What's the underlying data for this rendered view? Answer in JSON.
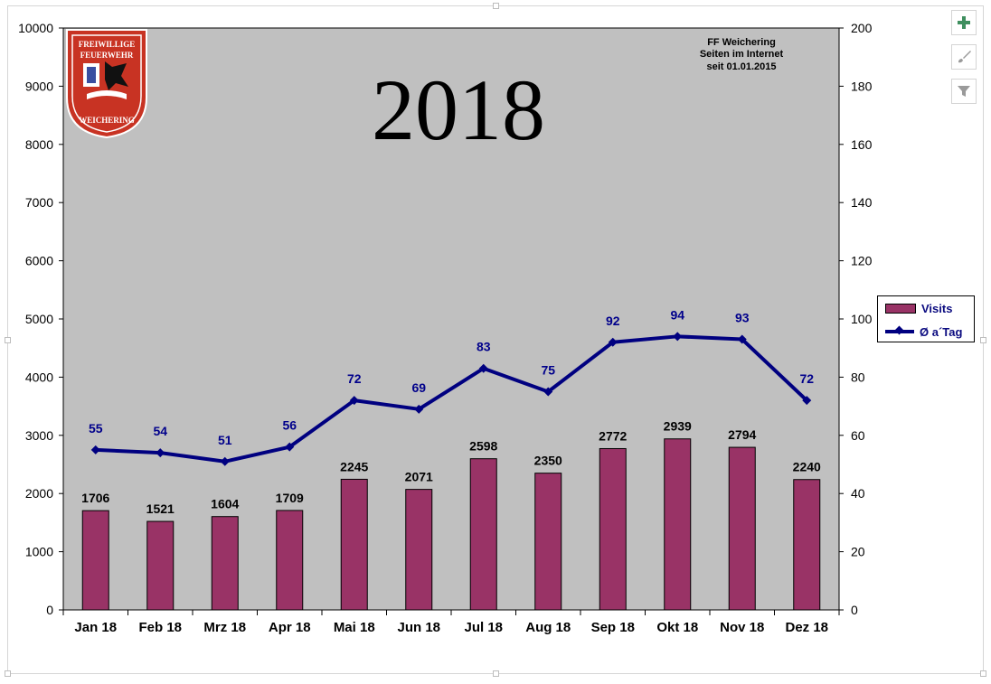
{
  "chart_data": {
    "type": "bar+line",
    "title": "2018",
    "subtitle": [
      "FF Weichering",
      "Seiten im Internet",
      "seit 01.01.2015"
    ],
    "categories": [
      "Jan 18",
      "Feb 18",
      "Mrz 18",
      "Apr 18",
      "Mai 18",
      "Jun 18",
      "Jul 18",
      "Aug 18",
      "Sep 18",
      "Okt 18",
      "Nov 18",
      "Dez 18"
    ],
    "series": [
      {
        "name": "Visits",
        "type": "bar",
        "axis": "left",
        "values": [
          1706,
          1521,
          1604,
          1709,
          2245,
          2071,
          2598,
          2350,
          2772,
          2939,
          2794,
          2240
        ]
      },
      {
        "name": "Ø a´Tag",
        "type": "line",
        "axis": "right",
        "values": [
          55,
          54,
          51,
          56,
          72,
          69,
          83,
          75,
          92,
          94,
          93,
          72
        ]
      }
    ],
    "y_left": {
      "min": 0,
      "max": 10000,
      "ticks": [
        0,
        1000,
        2000,
        3000,
        4000,
        5000,
        6000,
        7000,
        8000,
        9000,
        10000
      ]
    },
    "y_right": {
      "min": 0,
      "max": 200,
      "ticks": [
        0,
        20,
        40,
        60,
        80,
        100,
        120,
        140,
        160,
        180,
        200
      ]
    },
    "grid": false,
    "legend": "right",
    "plot_bg": "#c0c0c0",
    "bar_color": "#993366",
    "line_color": "#000080",
    "label_color": "#00008b"
  },
  "logo": {
    "text_top": [
      "FREIWILLIGE",
      "FEUERWEHR"
    ],
    "text_bottom": "WEICHERING",
    "color": "#c83323"
  },
  "legend": {
    "visits": "Visits",
    "avg": "Ø a´Tag"
  },
  "side_buttons": [
    "add-chart-element-icon",
    "chart-styles-icon",
    "chart-filter-icon"
  ]
}
